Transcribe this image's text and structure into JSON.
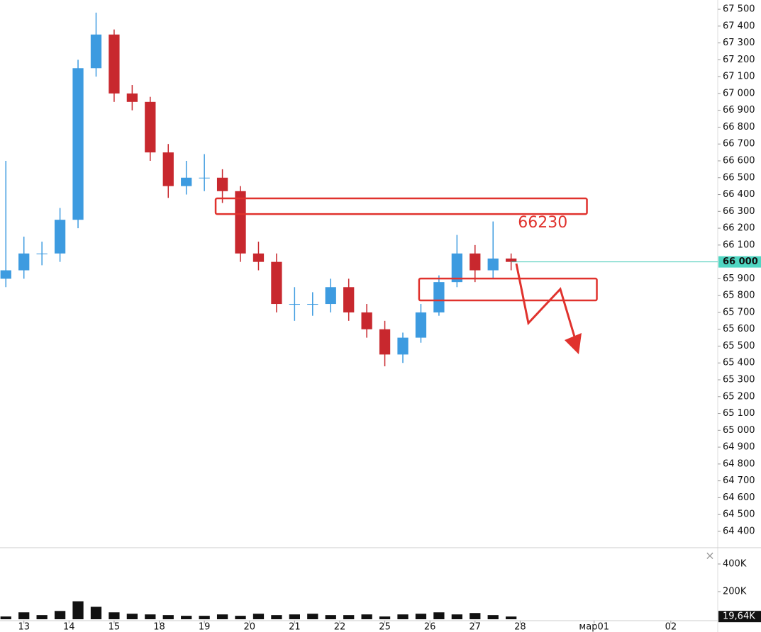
{
  "chart_data": {
    "type": "candlestick",
    "x": [
      -0.4,
      0,
      0.4,
      0.8,
      1.2,
      1.6,
      2.0,
      2.4,
      2.8,
      3.2,
      3.6,
      4.0,
      4.4,
      4.8,
      5.2,
      5.6,
      6.0,
      6.4,
      6.8,
      7.2,
      7.6,
      8.0,
      8.4,
      8.8,
      9.2,
      9.6,
      10.0,
      10.4,
      10.8
    ],
    "open": [
      65900,
      65950,
      66050,
      66050,
      66250,
      67150,
      67350,
      67000,
      66950,
      66650,
      66450,
      66500,
      66500,
      66420,
      66050,
      66000,
      65750,
      65750,
      65750,
      65850,
      65700,
      65600,
      65450,
      65550,
      65700,
      65880,
      66050,
      65950,
      66020
    ],
    "high": [
      66600,
      66150,
      66120,
      66320,
      67200,
      67480,
      67380,
      67050,
      66980,
      66700,
      66600,
      66640,
      66550,
      66450,
      66120,
      66050,
      65850,
      65820,
      65900,
      65900,
      65750,
      65650,
      65580,
      65750,
      65920,
      66160,
      66100,
      66240,
      66050
    ],
    "low": [
      65850,
      65900,
      65980,
      66000,
      66200,
      67100,
      66950,
      66900,
      66600,
      66380,
      66400,
      66420,
      66350,
      66000,
      65950,
      65700,
      65650,
      65680,
      65700,
      65650,
      65550,
      65380,
      65400,
      65520,
      65680,
      65850,
      65880,
      65900,
      65950
    ],
    "close": [
      65950,
      66050,
      66050,
      66250,
      67150,
      67350,
      67000,
      66950,
      66650,
      66450,
      66500,
      66500,
      66420,
      66050,
      66000,
      65750,
      65750,
      65750,
      65850,
      65700,
      65600,
      65450,
      65550,
      65700,
      65880,
      66050,
      65950,
      66020,
      66000
    ],
    "up_color": "#3d9be0",
    "down_color": "#c8282e",
    "volume": [
      20000,
      50000,
      30000,
      60000,
      130000,
      90000,
      50000,
      40000,
      35000,
      30000,
      25000,
      25000,
      35000,
      25000,
      40000,
      30000,
      35000,
      40000,
      30000,
      30000,
      35000,
      20000,
      35000,
      40000,
      50000,
      35000,
      45000,
      30000,
      19640
    ],
    "volume_color": "#111111",
    "xlim": [
      -0.53,
      15.38
    ],
    "xticks": [
      {
        "value": 0,
        "label": "13"
      },
      {
        "value": 1,
        "label": "14"
      },
      {
        "value": 2,
        "label": "15"
      },
      {
        "value": 3,
        "label": "18"
      },
      {
        "value": 4,
        "label": "19"
      },
      {
        "value": 5,
        "label": "20"
      },
      {
        "value": 6,
        "label": "21"
      },
      {
        "value": 7,
        "label": "22"
      },
      {
        "value": 8,
        "label": "25"
      },
      {
        "value": 9,
        "label": "26"
      },
      {
        "value": 10,
        "label": "27"
      },
      {
        "value": 11,
        "label": "28"
      },
      {
        "value": 12.64,
        "label": "мар01"
      },
      {
        "value": 14.34,
        "label": "02"
      }
    ],
    "ylim": [
      64303,
      67555
    ],
    "yticks": [
      {
        "value": 67500,
        "label": "67 500"
      },
      {
        "value": 67400,
        "label": "67 400"
      },
      {
        "value": 67300,
        "label": "67 300"
      },
      {
        "value": 67200,
        "label": "67 200"
      },
      {
        "value": 67100,
        "label": "67 100"
      },
      {
        "value": 67000,
        "label": "67 000"
      },
      {
        "value": 66900,
        "label": "66 900"
      },
      {
        "value": 66800,
        "label": "66 800"
      },
      {
        "value": 66700,
        "label": "66 700"
      },
      {
        "value": 66600,
        "label": "66 600"
      },
      {
        "value": 66500,
        "label": "66 500"
      },
      {
        "value": 66400,
        "label": "66 400"
      },
      {
        "value": 66300,
        "label": "66 300"
      },
      {
        "value": 66200,
        "label": "66 200"
      },
      {
        "value": 66100,
        "label": "66 100"
      },
      {
        "value": 65900,
        "label": "65 900"
      },
      {
        "value": 65800,
        "label": "65 800"
      },
      {
        "value": 65700,
        "label": "65 700"
      },
      {
        "value": 65600,
        "label": "65 600"
      },
      {
        "value": 65500,
        "label": "65 500"
      },
      {
        "value": 65400,
        "label": "65 400"
      },
      {
        "value": 65300,
        "label": "65 300"
      },
      {
        "value": 65200,
        "label": "65 200"
      },
      {
        "value": 65100,
        "label": "65 100"
      },
      {
        "value": 65000,
        "label": "65 000"
      },
      {
        "value": 64900,
        "label": "64 900"
      },
      {
        "value": 64800,
        "label": "64 800"
      },
      {
        "value": 64700,
        "label": "64 700"
      },
      {
        "value": 64600,
        "label": "64 600"
      },
      {
        "value": 64500,
        "label": "64 500"
      },
      {
        "value": 64400,
        "label": "64 400"
      }
    ],
    "current_price": {
      "value": 66000,
      "label": "66 000"
    },
    "volume_lim": [
      0,
      400000
    ],
    "volume_ticks": [
      {
        "value": 400000,
        "label": "400K"
      },
      {
        "value": 200000,
        "label": "200K"
      }
    ],
    "current_volume": {
      "value": 19640,
      "label": "19,64K"
    },
    "annotation": {
      "value": 66230,
      "label": "66230",
      "x": 10.95
    },
    "zones": [
      {
        "x": [
          4.25,
          12.48
        ],
        "y": [
          66284,
          66377
        ]
      },
      {
        "x": [
          8.76,
          12.7
        ],
        "y": [
          65771,
          65901
        ]
      }
    ],
    "annotation_color": "#e0322d"
  }
}
